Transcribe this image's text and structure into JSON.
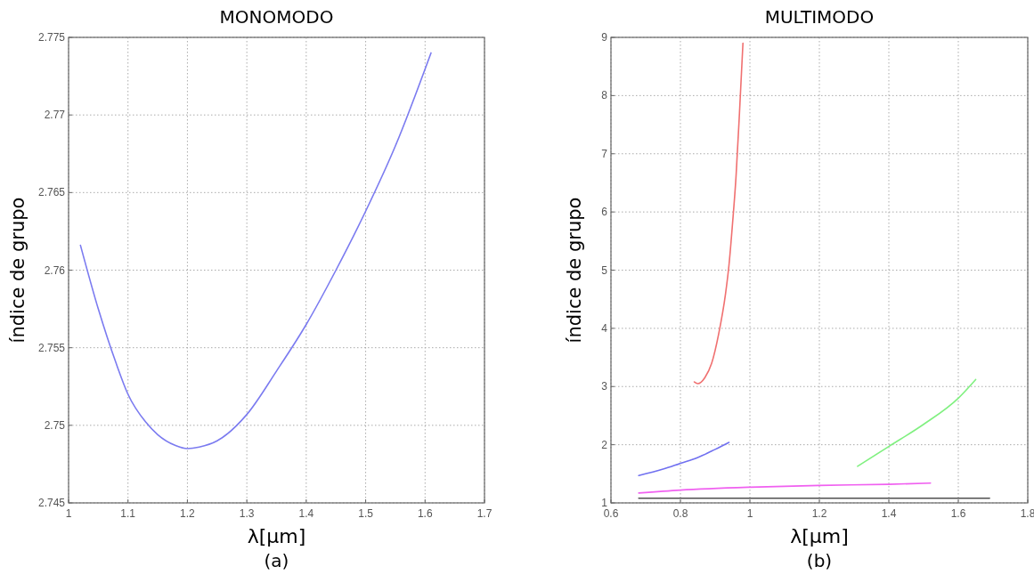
{
  "chart_data": [
    {
      "type": "line",
      "title": "MONOMODO",
      "xlabel": "λ[μm]",
      "ylabel": "índice de grupo",
      "annotations": [
        "(a)"
      ],
      "grid": true,
      "line_style": "solid",
      "xlim": [
        1,
        1.7
      ],
      "xticks": [
        1,
        1.1,
        1.2,
        1.3,
        1.4,
        1.5,
        1.6,
        1.7
      ],
      "ylim": [
        2.745,
        2.775
      ],
      "yticks": [
        2.745,
        2.75,
        2.755,
        2.76,
        2.765,
        2.77,
        2.775
      ],
      "series": [
        {
          "color": "#7b7bf0",
          "x": [
            1.02,
            1.05,
            1.08,
            1.1,
            1.13,
            1.15,
            1.18,
            1.2,
            1.22,
            1.25,
            1.3,
            1.35,
            1.4,
            1.45,
            1.5,
            1.55,
            1.61
          ],
          "values": [
            2.7616,
            2.7575,
            2.754,
            2.752,
            2.7502,
            2.7494,
            2.7487,
            2.7485,
            2.7486,
            2.749,
            2.7507,
            2.7535,
            2.7565,
            2.76,
            2.7638,
            2.768,
            2.774
          ]
        }
      ]
    },
    {
      "type": "line",
      "title": "MULTIMODO",
      "xlabel": "λ[μm]",
      "ylabel": "índice de grupo",
      "annotations": [
        "(b)"
      ],
      "grid": true,
      "line_style": "solid",
      "xlim": [
        0.6,
        1.8
      ],
      "xticks": [
        0.6,
        0.8,
        1,
        1.2,
        1.4,
        1.6,
        1.8
      ],
      "ylim": [
        1,
        9
      ],
      "yticks": [
        1,
        2,
        3,
        4,
        5,
        6,
        7,
        8,
        9
      ],
      "series": [
        {
          "color": "#f07070",
          "x": [
            0.84,
            0.85,
            0.87,
            0.89,
            0.91,
            0.93,
            0.94,
            0.95,
            0.96,
            0.97,
            0.98
          ],
          "values": [
            3.08,
            3.05,
            3.15,
            3.4,
            3.9,
            4.6,
            5.1,
            5.8,
            6.6,
            7.7,
            8.9
          ]
        },
        {
          "color": "#7070f0",
          "x": [
            0.68,
            0.75,
            0.8,
            0.85,
            0.9,
            0.94
          ],
          "values": [
            1.47,
            1.58,
            1.68,
            1.78,
            1.92,
            2.04
          ]
        },
        {
          "color": "#80f080",
          "x": [
            1.31,
            1.4,
            1.5,
            1.6,
            1.65
          ],
          "values": [
            1.63,
            1.97,
            2.35,
            2.8,
            3.12
          ]
        },
        {
          "color": "#f060f0",
          "x": [
            0.68,
            0.8,
            1.0,
            1.2,
            1.4,
            1.52
          ],
          "values": [
            1.17,
            1.22,
            1.27,
            1.3,
            1.32,
            1.34
          ]
        },
        {
          "color": "#505050",
          "x": [
            0.68,
            1.0,
            1.4,
            1.69
          ],
          "values": [
            1.08,
            1.08,
            1.08,
            1.08
          ]
        }
      ]
    }
  ]
}
